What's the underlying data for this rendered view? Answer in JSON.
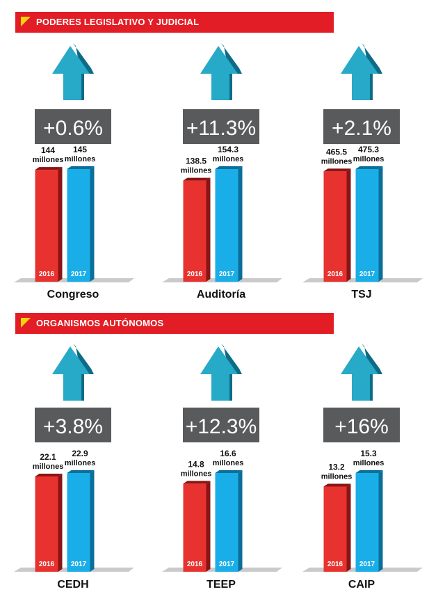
{
  "sections": [
    {
      "title": "PODERES LEGISLATIVO Y JUDICIAL"
    },
    {
      "title": "ORGANISMOS AUTÓNOMOS"
    }
  ],
  "colors": {
    "banner": "#e31d25",
    "banner_triangle": "#f5d40a",
    "bar_2016": "#e8322f",
    "bar_2016_side": "#8a1414",
    "bar_2017": "#1aaee8",
    "bar_2017_side": "#0b6f9a",
    "arrow_front": "#27a9c8",
    "arrow_side": "#0e6b86",
    "badge": "#595a5c",
    "floor": "#c9cacc"
  },
  "chart_data": [
    {
      "type": "bar",
      "section": 0,
      "entity": "Congreso",
      "change": "+0.6%",
      "unit": "millones",
      "categories": [
        "2016",
        "2017"
      ],
      "values": [
        144,
        145
      ],
      "value_labels": [
        "144",
        "145"
      ]
    },
    {
      "type": "bar",
      "section": 0,
      "entity": "Auditoría",
      "change": "+11.3%",
      "unit": "millones",
      "categories": [
        "2016",
        "2017"
      ],
      "values": [
        138.5,
        154.3
      ],
      "value_labels": [
        "138.5",
        "154.3"
      ]
    },
    {
      "type": "bar",
      "section": 0,
      "entity": "TSJ",
      "change": "+2.1%",
      "unit": "millones",
      "categories": [
        "2016",
        "2017"
      ],
      "values": [
        465.5,
        475.3
      ],
      "value_labels": [
        "465.5",
        "475.3"
      ]
    },
    {
      "type": "bar",
      "section": 1,
      "entity": "CEDH",
      "change": "+3.8%",
      "unit": "millones",
      "categories": [
        "2016",
        "2017"
      ],
      "values": [
        22.1,
        22.9
      ],
      "value_labels": [
        "22.1",
        "22.9"
      ]
    },
    {
      "type": "bar",
      "section": 1,
      "entity": "TEEP",
      "change": "+12.3%",
      "unit": "millones",
      "categories": [
        "2016",
        "2017"
      ],
      "values": [
        14.8,
        16.6
      ],
      "value_labels": [
        "14.8",
        "16.6"
      ]
    },
    {
      "type": "bar",
      "section": 1,
      "entity": "CAIP",
      "change": "+16%",
      "unit": "millones",
      "categories": [
        "2016",
        "2017"
      ],
      "values": [
        13.2,
        15.3
      ],
      "value_labels": [
        "13.2",
        "15.3"
      ]
    }
  ]
}
